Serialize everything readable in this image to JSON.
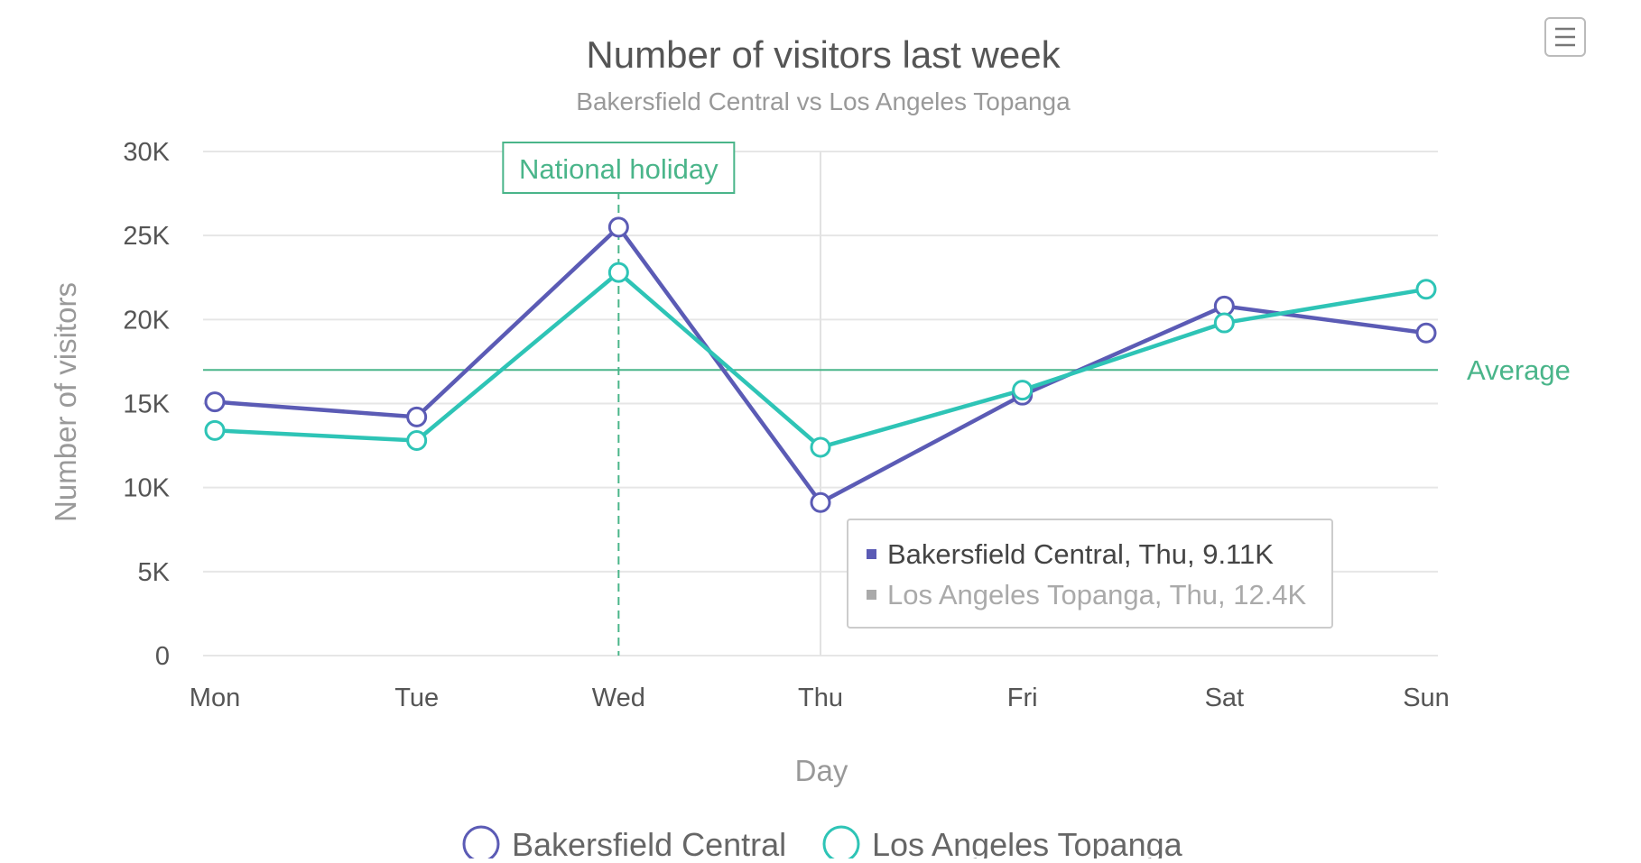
{
  "colors": {
    "series_1": "#5b5bb5",
    "series_2": "#2ec4b6",
    "annotation": "#4ab58a",
    "grid": "#e6e6e6",
    "tooltip_inactive": "#aaaaaa"
  },
  "menu": {
    "icon": "hamburger-menu-icon"
  },
  "chart_data": {
    "type": "line",
    "title": "Number of visitors last week",
    "subtitle": "Bakersfield Central vs Los Angeles Topanga",
    "xlabel": "Day",
    "ylabel": "Number of visitors",
    "categories": [
      "Mon",
      "Tue",
      "Wed",
      "Thu",
      "Fri",
      "Sat",
      "Sun"
    ],
    "ylim": [
      0,
      30000
    ],
    "yticks": [
      0,
      5000,
      10000,
      15000,
      20000,
      25000,
      30000
    ],
    "ytick_labels": [
      "0",
      "5K",
      "10K",
      "15K",
      "20K",
      "25K",
      "30K"
    ],
    "grid": true,
    "legend": "bottom",
    "series": [
      {
        "name": "Bakersfield Central",
        "values": [
          15100,
          14200,
          25500,
          9110,
          15500,
          20800,
          19200
        ]
      },
      {
        "name": "Los Angeles Topanga",
        "values": [
          13400,
          12800,
          22800,
          12400,
          15800,
          19800,
          21800
        ]
      }
    ],
    "annotations": {
      "vertical_line": {
        "category": "Wed",
        "label": "National holiday"
      },
      "horizontal_line": {
        "value": 17000,
        "label": "Average"
      }
    },
    "tooltip": {
      "category": "Thu",
      "lines": [
        "Bakersfield Central, Thu, 9.11K",
        "Los Angeles Topanga, Thu, 12.4K"
      ]
    }
  }
}
